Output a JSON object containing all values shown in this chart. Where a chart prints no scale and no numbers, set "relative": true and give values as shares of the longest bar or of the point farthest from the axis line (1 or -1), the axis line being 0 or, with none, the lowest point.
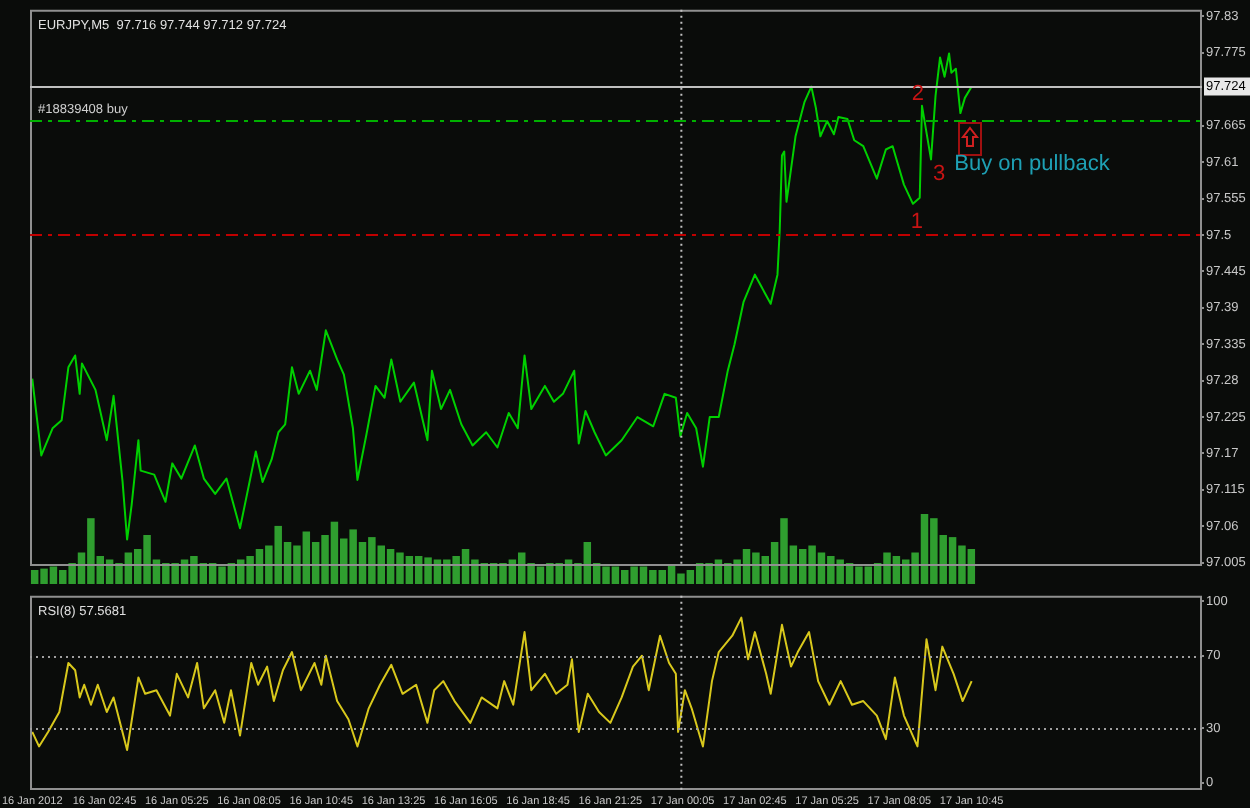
{
  "chart_data": [
    {
      "type": "line",
      "title": "EURJPY,M5  97.716 97.744 97.712 97.724",
      "tick_labels": "y",
      "marker": "none",
      "xlim": [
        "2012-01-16T00:00",
        "2012-01-17T19:15"
      ],
      "ylim": [
        97.0,
        97.84
      ],
      "yticks": [
        97.005,
        97.06,
        97.115,
        97.17,
        97.225,
        97.28,
        97.335,
        97.39,
        97.445,
        97.5,
        97.555,
        97.61,
        97.665,
        97.775,
        97.83
      ],
      "x": [
        "2012-01-16T00:05",
        "2012-01-16T00:15",
        "2012-01-16T00:25",
        "2012-01-16T00:50",
        "2012-01-16T01:10",
        "2012-01-16T01:25",
        "2012-01-16T01:40",
        "2012-01-16T01:50",
        "2012-01-16T01:55",
        "2012-01-16T02:25",
        "2012-01-16T02:50",
        "2012-01-16T03:05",
        "2012-01-16T03:25",
        "2012-01-16T03:35",
        "2012-01-16T03:45",
        "2012-01-16T04:00",
        "2012-01-16T04:05",
        "2012-01-16T04:35",
        "2012-01-16T05:00",
        "2012-01-16T05:15",
        "2012-01-16T05:35",
        "2012-01-16T06:05",
        "2012-01-16T06:25",
        "2012-01-16T06:50",
        "2012-01-16T07:15",
        "2012-01-16T07:45",
        "2012-01-16T08:20",
        "2012-01-16T08:35",
        "2012-01-16T08:55",
        "2012-01-16T09:10",
        "2012-01-16T09:25",
        "2012-01-16T09:40",
        "2012-01-16T09:55",
        "2012-01-16T10:20",
        "2012-01-16T10:35",
        "2012-01-16T10:55",
        "2012-01-16T11:20",
        "2012-01-16T11:35",
        "2012-01-16T11:55",
        "2012-01-16T12:05",
        "2012-01-16T12:25",
        "2012-01-16T12:45",
        "2012-01-16T13:05",
        "2012-01-16T13:20",
        "2012-01-16T13:40",
        "2012-01-16T14:10",
        "2012-01-16T14:40",
        "2012-01-16T14:50",
        "2012-01-16T15:10",
        "2012-01-16T15:30",
        "2012-01-16T15:55",
        "2012-01-16T16:20",
        "2012-01-16T16:50",
        "2012-01-16T17:15",
        "2012-01-16T17:40",
        "2012-01-16T18:00",
        "2012-01-16T18:15",
        "2012-01-16T18:30",
        "2012-01-16T19:00",
        "2012-01-16T19:20",
        "2012-01-16T19:40",
        "2012-01-16T20:05",
        "2012-01-16T20:15",
        "2012-01-16T20:30",
        "2012-01-16T20:50",
        "2012-01-16T21:15",
        "2012-01-16T21:50",
        "2012-01-16T22:25",
        "2012-01-16T23:00",
        "2012-01-16T23:25",
        "2012-01-16T23:50",
        "2012-01-17T00:00",
        "2012-01-17T00:15",
        "2012-01-17T00:35",
        "2012-01-17T00:50",
        "2012-01-17T01:05",
        "2012-01-17T01:25",
        "2012-01-17T01:45",
        "2012-01-17T02:00",
        "2012-01-17T02:20",
        "2012-01-17T02:45",
        "2012-01-17T03:20",
        "2012-01-17T03:35",
        "2012-01-17T03:40",
        "2012-01-17T03:45",
        "2012-01-17T03:50",
        "2012-01-17T03:55",
        "2012-01-17T04:15",
        "2012-01-17T04:35",
        "2012-01-17T04:50",
        "2012-01-17T05:00",
        "2012-01-17T05:10",
        "2012-01-17T05:25",
        "2012-01-17T05:40",
        "2012-01-17T05:50",
        "2012-01-17T06:10",
        "2012-01-17T06:25",
        "2012-01-17T06:45",
        "2012-01-17T07:15",
        "2012-01-17T07:35",
        "2012-01-17T07:50",
        "2012-01-17T08:15",
        "2012-01-17T08:35",
        "2012-01-17T08:50",
        "2012-01-17T08:55",
        "2012-01-17T09:15",
        "2012-01-17T09:25",
        "2012-01-17T09:35",
        "2012-01-17T09:45",
        "2012-01-17T09:55",
        "2012-01-17T10:00",
        "2012-01-17T10:10",
        "2012-01-17T10:20",
        "2012-01-17T10:30",
        "2012-01-17T10:45"
      ],
      "series": [
        {
          "color": "#00d000",
          "values": [
            97.283,
            97.225,
            97.167,
            97.208,
            97.22,
            97.3,
            97.318,
            97.26,
            97.306,
            97.266,
            97.19,
            97.257,
            97.127,
            97.04,
            97.092,
            97.19,
            97.144,
            97.138,
            97.097,
            97.155,
            97.132,
            97.182,
            97.132,
            97.109,
            97.132,
            97.057,
            97.173,
            97.127,
            97.161,
            97.202,
            97.214,
            97.3,
            97.26,
            97.295,
            97.266,
            97.356,
            97.312,
            97.289,
            97.208,
            97.13,
            97.199,
            97.272,
            97.254,
            97.312,
            97.248,
            97.277,
            97.19,
            97.295,
            97.237,
            97.266,
            97.214,
            97.182,
            97.202,
            97.179,
            97.231,
            97.208,
            97.318,
            97.237,
            97.272,
            97.248,
            97.26,
            97.295,
            97.185,
            97.234,
            97.202,
            97.167,
            97.19,
            97.225,
            97.211,
            97.26,
            97.254,
            97.196,
            97.231,
            97.208,
            97.15,
            97.225,
            97.225,
            97.295,
            97.335,
            97.399,
            97.44,
            97.396,
            97.44,
            97.507,
            97.62,
            97.626,
            97.55,
            97.649,
            97.701,
            97.724,
            97.692,
            97.649,
            97.672,
            97.652,
            97.678,
            97.675,
            97.643,
            97.634,
            97.585,
            97.629,
            97.634,
            97.576,
            97.547,
            97.556,
            97.695,
            97.614,
            97.71,
            97.768,
            97.739,
            97.774,
            97.745,
            97.751,
            97.684,
            97.707,
            97.724
          ]
        }
      ],
      "ref_lines": [
        {
          "axis": "y",
          "value": 97.724,
          "label": "97.724",
          "color": "#c0c0c0",
          "line_style": "solid"
        },
        {
          "axis": "y",
          "value": 97.674,
          "label": "#18839408 buy",
          "color": "#00b000",
          "line_style": "dashed"
        },
        {
          "axis": "y",
          "value": 97.5,
          "color": "#c00000",
          "line_style": "dashed"
        },
        {
          "axis": "x",
          "value": "2012-01-17T00:00",
          "color": "#c0c0c0",
          "line_style": "dotted"
        }
      ],
      "annotations": [
        {
          "text": "1",
          "x": "2012-01-17T08:35",
          "y": 97.547
        },
        {
          "text": "2",
          "x": "2012-01-17T08:55",
          "y": 97.695
        },
        {
          "text": "3",
          "x": "2012-01-17T09:15",
          "y": 97.614
        },
        "Buy on pullback"
      ]
    },
    {
      "type": "bar",
      "relative": true,
      "color": "#2f9e2f",
      "categories": [
        null,
        null,
        null,
        null,
        null,
        null,
        null,
        null,
        null,
        null,
        null,
        null,
        null,
        null,
        null,
        null,
        null,
        null,
        null,
        null,
        null,
        null,
        null,
        null,
        null,
        null,
        null,
        null,
        null,
        null,
        null,
        null,
        null,
        null,
        null,
        null,
        null,
        null,
        null,
        null,
        null,
        null,
        null,
        null,
        null,
        null,
        null,
        null,
        null,
        null,
        null,
        null,
        null,
        null,
        null,
        null,
        null,
        null,
        null,
        null,
        null,
        null,
        null,
        null,
        null,
        null,
        null,
        null,
        null,
        null,
        null,
        null,
        null,
        null,
        null,
        null,
        null,
        null,
        null,
        null,
        null,
        null,
        null,
        null,
        null,
        null,
        null,
        null,
        null,
        null,
        null,
        null,
        null,
        null,
        null,
        null,
        null,
        null,
        null,
        null,
        null
      ],
      "values": [
        0.2,
        0.22,
        0.25,
        0.2,
        0.3,
        0.45,
        0.94,
        0.4,
        0.35,
        0.3,
        0.45,
        0.5,
        0.7,
        0.35,
        0.3,
        0.3,
        0.35,
        0.4,
        0.3,
        0.3,
        0.25,
        0.3,
        0.35,
        0.4,
        0.5,
        0.55,
        0.83,
        0.6,
        0.55,
        0.75,
        0.6,
        0.7,
        0.89,
        0.65,
        0.78,
        0.6,
        0.67,
        0.55,
        0.5,
        0.45,
        0.4,
        0.4,
        0.38,
        0.35,
        0.35,
        0.4,
        0.5,
        0.35,
        0.3,
        0.3,
        0.3,
        0.35,
        0.45,
        0.3,
        0.25,
        0.3,
        0.3,
        0.35,
        0.3,
        0.6,
        0.3,
        0.25,
        0.25,
        0.2,
        0.25,
        0.25,
        0.2,
        0.2,
        0.28,
        0.15,
        0.2,
        0.3,
        0.3,
        0.35,
        0.3,
        0.35,
        0.5,
        0.45,
        0.4,
        0.6,
        0.94,
        0.55,
        0.5,
        0.55,
        0.45,
        0.4,
        0.35,
        0.3,
        0.25,
        0.25,
        0.3,
        0.45,
        0.4,
        0.35,
        0.45,
        1,
        0.94,
        0.7,
        0.67,
        0.55,
        0.5
      ]
    },
    {
      "type": "line",
      "title": "RSI(8) 57.5681",
      "marker": "none",
      "xlim": [
        "2012-01-16T00:00",
        "2012-01-17T19:15"
      ],
      "ylim": [
        -4,
        103
      ],
      "yticks": [
        0,
        30,
        70,
        100
      ],
      "xticks": [
        {
          "value": "2012-01-16T00:05",
          "label": "16 Jan 2012"
        },
        {
          "value": "2012-01-16T02:45",
          "label": "16 Jan 02:45"
        },
        {
          "value": "2012-01-16T05:25",
          "label": "16 Jan 05:25"
        },
        {
          "value": "2012-01-16T08:05",
          "label": "16 Jan 08:05"
        },
        {
          "value": "2012-01-16T10:45",
          "label": "16 Jan 10:45"
        },
        {
          "value": "2012-01-16T13:25",
          "label": "16 Jan 13:25"
        },
        {
          "value": "2012-01-16T16:05",
          "label": "16 Jan 16:05"
        },
        {
          "value": "2012-01-16T18:45",
          "label": "16 Jan 18:45"
        },
        {
          "value": "2012-01-16T21:25",
          "label": "16 Jan 21:25"
        },
        {
          "value": "2012-01-17T00:05",
          "label": "17 Jan 00:05"
        },
        {
          "value": "2012-01-17T02:45",
          "label": "17 Jan 02:45"
        },
        {
          "value": "2012-01-17T05:25",
          "label": "17 Jan 05:25"
        },
        {
          "value": "2012-01-17T08:05",
          "label": "17 Jan 08:05"
        },
        {
          "value": "2012-01-17T10:45",
          "label": "17 Jan 10:45"
        }
      ],
      "x": [
        "2012-01-16T00:05",
        "2012-01-16T00:20",
        "2012-01-16T00:40",
        "2012-01-16T01:05",
        "2012-01-16T01:25",
        "2012-01-16T01:40",
        "2012-01-16T01:50",
        "2012-01-16T02:00",
        "2012-01-16T02:15",
        "2012-01-16T02:30",
        "2012-01-16T02:50",
        "2012-01-16T03:05",
        "2012-01-16T03:35",
        "2012-01-16T04:00",
        "2012-01-16T04:15",
        "2012-01-16T04:40",
        "2012-01-16T05:10",
        "2012-01-16T05:25",
        "2012-01-16T05:50",
        "2012-01-16T06:10",
        "2012-01-16T06:25",
        "2012-01-16T06:50",
        "2012-01-16T07:10",
        "2012-01-16T07:25",
        "2012-01-16T07:45",
        "2012-01-16T08:10",
        "2012-01-16T08:25",
        "2012-01-16T08:45",
        "2012-01-16T09:00",
        "2012-01-16T09:20",
        "2012-01-16T09:40",
        "2012-01-16T10:00",
        "2012-01-16T10:30",
        "2012-01-16T10:45",
        "2012-01-16T10:55",
        "2012-01-16T11:20",
        "2012-01-16T11:45",
        "2012-01-16T12:05",
        "2012-01-16T12:30",
        "2012-01-16T12:55",
        "2012-01-16T13:20",
        "2012-01-16T13:45",
        "2012-01-16T14:15",
        "2012-01-16T14:40",
        "2012-01-16T14:55",
        "2012-01-16T15:15",
        "2012-01-16T15:40",
        "2012-01-16T16:15",
        "2012-01-16T16:40",
        "2012-01-16T17:15",
        "2012-01-16T17:30",
        "2012-01-16T17:50",
        "2012-01-16T18:15",
        "2012-01-16T18:30",
        "2012-01-16T19:00",
        "2012-01-16T19:25",
        "2012-01-16T19:50",
        "2012-01-16T20:00",
        "2012-01-16T20:15",
        "2012-01-16T20:35",
        "2012-01-16T21:00",
        "2012-01-16T21:25",
        "2012-01-16T21:50",
        "2012-01-16T22:15",
        "2012-01-16T22:35",
        "2012-01-16T22:50",
        "2012-01-16T23:15",
        "2012-01-16T23:35",
        "2012-01-16T23:50",
        "2012-01-16T23:55",
        "2012-01-17T00:10",
        "2012-01-17T00:25",
        "2012-01-17T00:50",
        "2012-01-17T01:10",
        "2012-01-17T01:25",
        "2012-01-17T01:55",
        "2012-01-17T02:15",
        "2012-01-17T02:30",
        "2012-01-17T02:45",
        "2012-01-17T03:10",
        "2012-01-17T03:20",
        "2012-01-17T03:45",
        "2012-01-17T04:05",
        "2012-01-17T04:20",
        "2012-01-17T04:45",
        "2012-01-17T05:05",
        "2012-01-17T05:30",
        "2012-01-17T05:55",
        "2012-01-17T06:20",
        "2012-01-17T06:45",
        "2012-01-17T07:15",
        "2012-01-17T07:35",
        "2012-01-17T07:55",
        "2012-01-17T08:15",
        "2012-01-17T08:45",
        "2012-01-17T09:05",
        "2012-01-17T09:25",
        "2012-01-17T09:40",
        "2012-01-17T10:05",
        "2012-01-17T10:25",
        "2012-01-17T10:45"
      ],
      "series": [
        {
          "color": "#d8c81c",
          "values": [
            28,
            20,
            28,
            39,
            66,
            62,
            47,
            54,
            43,
            54,
            39,
            47,
            18,
            58,
            49,
            51,
            37,
            60,
            47,
            66,
            41,
            51,
            33,
            51,
            26,
            66,
            54,
            64,
            45,
            62,
            72,
            51,
            66,
            54,
            70,
            45,
            35,
            20,
            41,
            54,
            65,
            49,
            54,
            33,
            51,
            56,
            45,
            33,
            47,
            41,
            56,
            43,
            83,
            51,
            60,
            49,
            54,
            68,
            28,
            49,
            39,
            33,
            47,
            64,
            70,
            51,
            81,
            66,
            60,
            28,
            51,
            41,
            20,
            56,
            72,
            81,
            91,
            68,
            83,
            60,
            49,
            87,
            64,
            72,
            83,
            56,
            43,
            56,
            43,
            45,
            37,
            24,
            58,
            37,
            20,
            79,
            51,
            75,
            60,
            45,
            56
          ]
        }
      ],
      "ref_lines": [
        {
          "axis": "y",
          "value": 70,
          "color": "#a0a0a0",
          "line_style": "dotted"
        },
        {
          "axis": "y",
          "value": 30,
          "color": "#a0a0a0",
          "line_style": "dotted"
        },
        {
          "axis": "x",
          "value": "2012-01-17T00:00",
          "color": "#c0c0c0",
          "line_style": "dotted"
        }
      ]
    }
  ]
}
